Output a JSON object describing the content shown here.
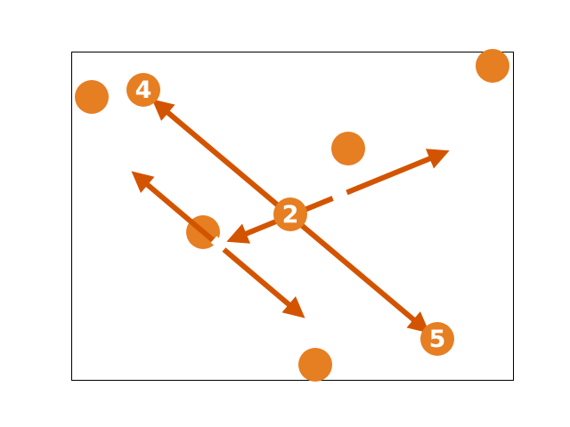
{
  "colors": {
    "dot": "#e67e22",
    "arrow": "#d35400",
    "frame": "#000000",
    "label": "#ffffff",
    "background": "#ffffff"
  },
  "labels": {
    "dot_2": "2",
    "dot_4": "4",
    "dot_5": "5"
  }
}
